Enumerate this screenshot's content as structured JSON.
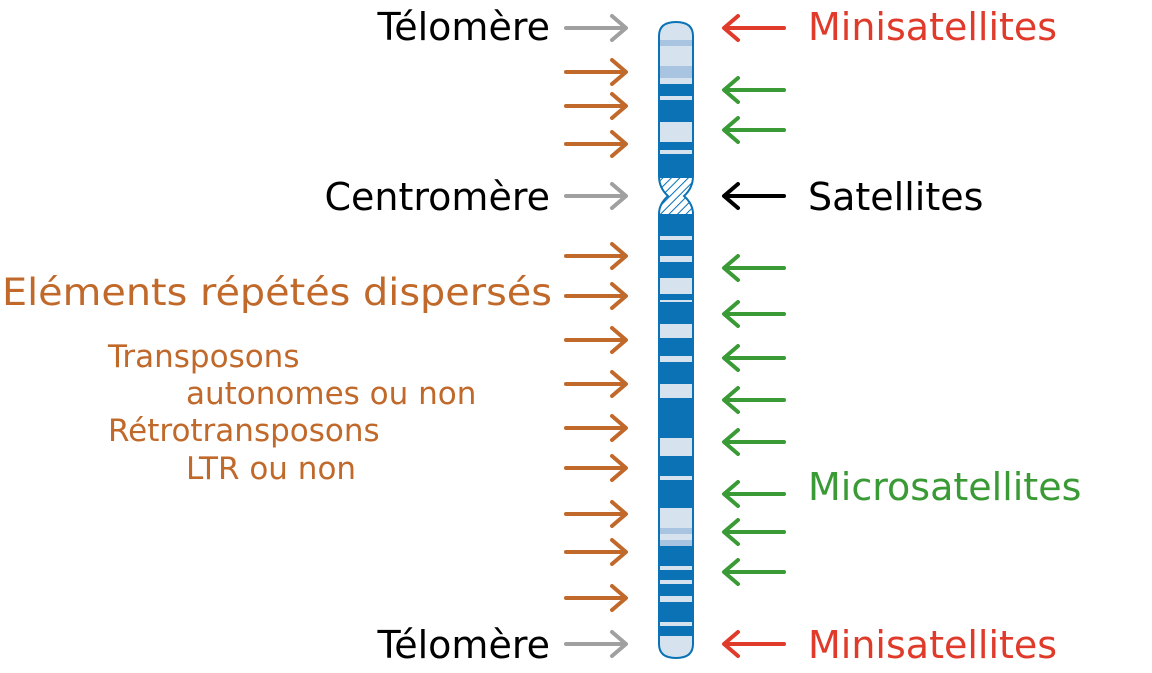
{
  "labels": {
    "telomere_top": "Télomère",
    "centromere": "Centromère",
    "telomere_bottom": "Télomère",
    "dispersed": "Eléments répétés dispersés",
    "transposons": "Transposons",
    "autonomes": "autonomes ou non",
    "retrotransposons": "Rétrotransposons",
    "ltr": "LTR ou non",
    "minisat_top": "Minisatellites",
    "satellites": "Satellites",
    "microsat": "Microsatellites",
    "minisat_bottom": "Minisatellites"
  },
  "colors": {
    "black": "#000000",
    "gray_arrow": "#a0a0a0",
    "orange": "#c0692a",
    "green": "#3a9a35",
    "red": "#e03a2a",
    "chrom_dark": "#0a72b5",
    "chrom_light": "#d6e3ef",
    "chrom_mid": "#a9c4e0"
  }
}
